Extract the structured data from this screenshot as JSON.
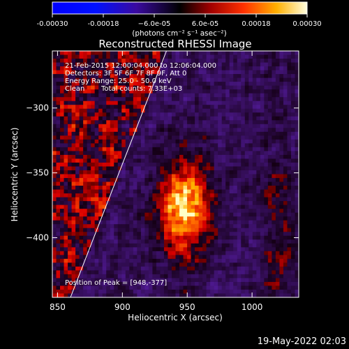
{
  "chart_data": {
    "type": "heatmap",
    "title": "Reconstructed RHESSI Image",
    "xlabel": "Heliocentric X (arcsec)",
    "ylabel": "Heliocentric Y (arcsec)",
    "xlim": [
      846,
      1036
    ],
    "ylim": [
      -446,
      -256
    ],
    "xticks": [
      850,
      900,
      950,
      1000
    ],
    "yticks": [
      -300,
      -350,
      -400
    ],
    "colorbar": {
      "label": "(photons cm⁻² s⁻¹ asec⁻²)",
      "range": [
        -0.0003,
        0.0003
      ],
      "tick_values": [
        -0.0003,
        -0.00018,
        -6e-05,
        6e-05,
        0.00018,
        0.0003
      ],
      "tick_labels": [
        "-0.00030",
        "-0.00018",
        "−6.0e-05",
        "6.0e-05",
        "0.00018",
        "0.00030"
      ]
    },
    "annotations": [
      "21-Feb-2015 12:00:04.000 to 12:06:04.000",
      "Detectors: 3F 5F 6F 7F 8F 9F, Att 0",
      "Energy Range: 25.0 - 50.0 keV",
      "Clean",
      "Total counts: 7.33E+03"
    ],
    "peak_label": "Position of Peak = [948,-377]",
    "peak": [
      948,
      -377
    ],
    "limb_line": [
      [
        860,
        -446
      ],
      [
        934,
        -256
      ]
    ],
    "grid": false
  },
  "footer": {
    "timestamp": "19-May-2022 02:03"
  }
}
